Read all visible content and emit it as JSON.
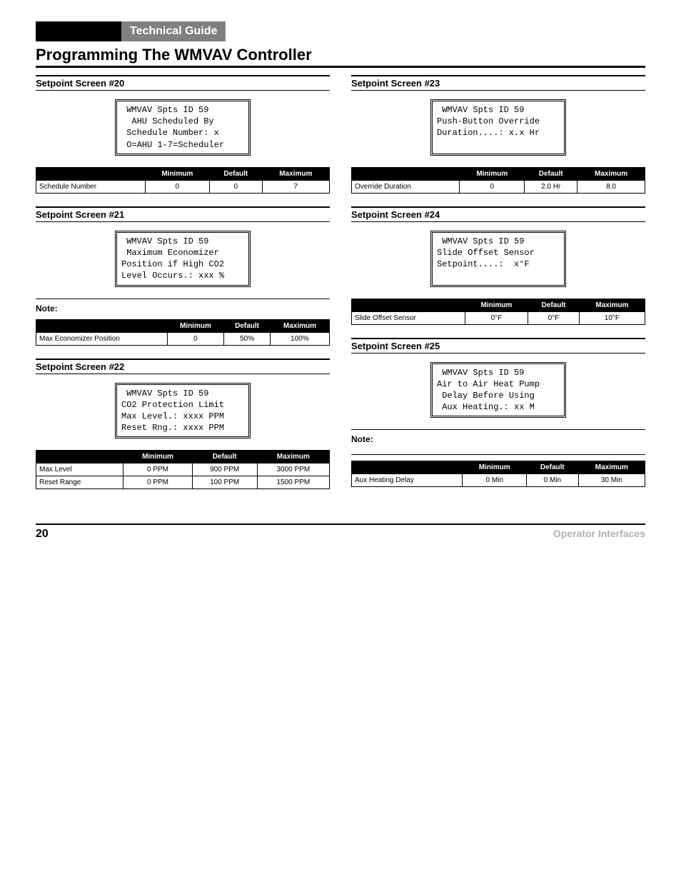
{
  "header": {
    "guide_title": "Technical Guide",
    "main_title": "Programming The WMVAV Controller"
  },
  "left": {
    "s20": {
      "heading": "Setpoint Screen #20",
      "lcd": " WMVAV Spts ID 59\n  AHU Scheduled By\n Schedule Number: x\n O=AHU 1-7=Scheduler",
      "table": {
        "cols": [
          "",
          "Minimum",
          "Default",
          "Maximum"
        ],
        "rows": [
          [
            "Schedule Number",
            "0",
            "0",
            "7"
          ]
        ]
      }
    },
    "s21": {
      "heading": "Setpoint Screen #21",
      "lcd": " WMVAV Spts ID 59\n Maximum Economizer\nPosition if High CO2\nLevel Occurs.: xxx %",
      "note": "Note:",
      "table": {
        "cols": [
          "",
          "Minimum",
          "Default",
          "Maximum"
        ],
        "rows": [
          [
            "Max Economizer Position",
            "0",
            "50%",
            "100%"
          ]
        ]
      }
    },
    "s22": {
      "heading": "Setpoint Screen #22",
      "lcd": " WMVAV Spts ID 59\nCO2 Protection Limit\nMax Level.: xxxx PPM\nReset Rng.: xxxx PPM",
      "table": {
        "cols": [
          "",
          "Minimum",
          "Default",
          "Maximum"
        ],
        "rows": [
          [
            "Max Level",
            "0 PPM",
            "900 PPM",
            "3000 PPM"
          ],
          [
            "Reset Range",
            "0 PPM",
            "100 PPM",
            "1500 PPM"
          ]
        ]
      }
    }
  },
  "right": {
    "s23": {
      "heading": "Setpoint Screen #23",
      "lcd": " WMVAV Spts ID 59\nPush-Button Override\nDuration....: x.x Hr\n ",
      "table": {
        "cols": [
          "",
          "Minimum",
          "Default",
          "Maximum"
        ],
        "rows": [
          [
            "Override Duration",
            "0",
            "2.0 Hr",
            "8.0"
          ]
        ]
      }
    },
    "s24": {
      "heading": "Setpoint Screen #24",
      "lcd": " WMVAV Spts ID 59\nSlide Offset Sensor\nSetpoint....:  x°F\n ",
      "table": {
        "cols": [
          "",
          "Minimum",
          "Default",
          "Maximum"
        ],
        "rows": [
          [
            "Slide Offset Sensor",
            "0°F",
            "0°F",
            "10°F"
          ]
        ]
      }
    },
    "s25": {
      "heading": "Setpoint Screen #25",
      "lcd": " WMVAV Spts ID 59\nAir to Air Heat Pump\n Delay Before Using\n Aux Heating.: xx M",
      "note": "Note:",
      "table": {
        "cols": [
          "",
          "Minimum",
          "Default",
          "Maximum"
        ],
        "rows": [
          [
            "Aux Heating Delay",
            "0 Min",
            "0 Min",
            "30 Min"
          ]
        ]
      }
    }
  },
  "footer": {
    "page": "20",
    "label": "Operator Interfaces"
  }
}
